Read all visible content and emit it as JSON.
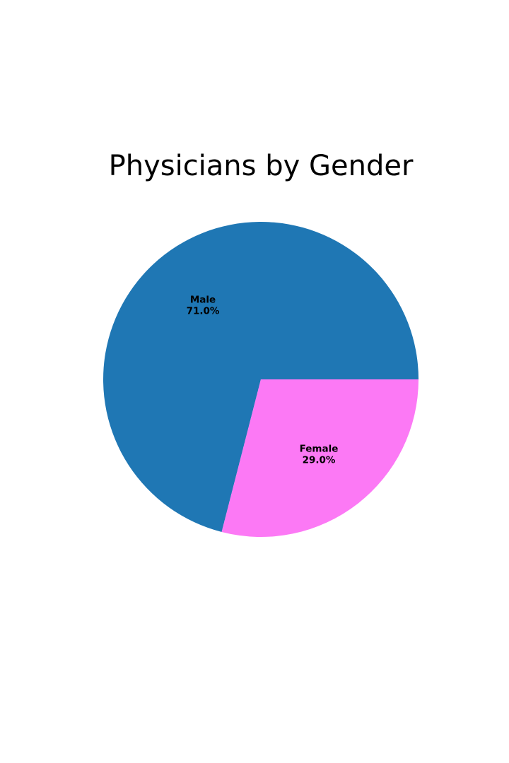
{
  "chart_data": {
    "type": "pie",
    "title": "Physicians by Gender",
    "slices": [
      {
        "label": "Male",
        "value": 71.0,
        "pct_label": "71.0%",
        "color": "#1f77b4"
      },
      {
        "label": "Female",
        "value": 29.0,
        "pct_label": "29.0%",
        "color": "#fc79f5"
      }
    ],
    "start_angle_deg": 0,
    "direction": "clockwise-screen",
    "legend": "none"
  }
}
